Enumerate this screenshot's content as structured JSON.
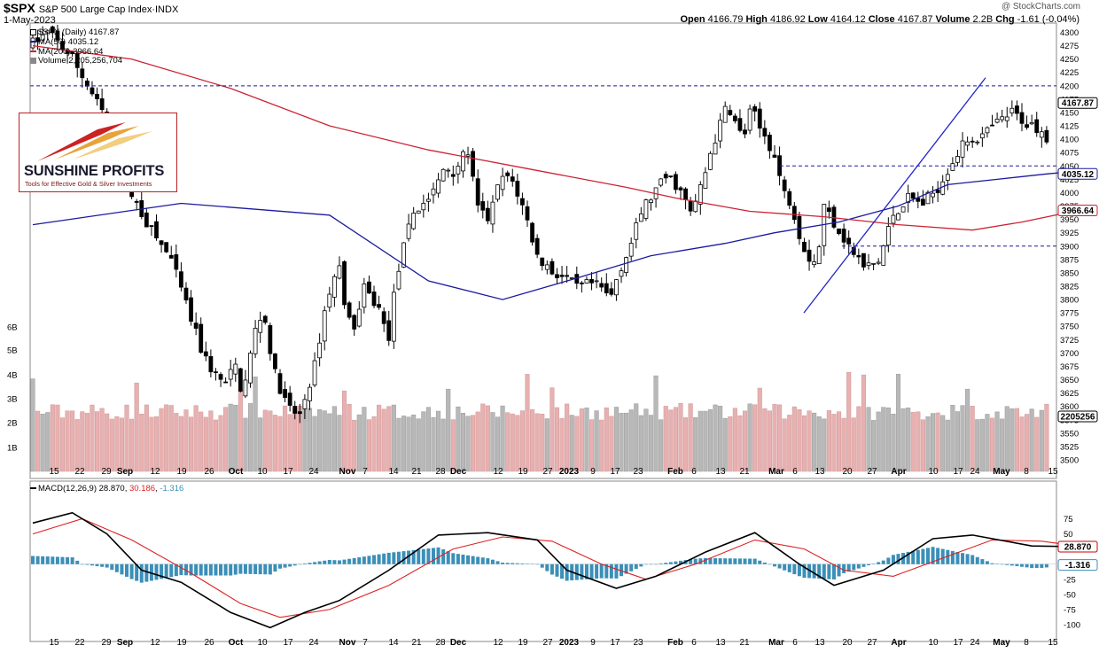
{
  "header": {
    "symbol": "$SPX",
    "name": "S&P 500 Large Cap Index",
    "exchange": "INDX",
    "date": "1-May-2023",
    "watermark": "@ StockCharts.com",
    "open_label": "Open",
    "open": "4166.79",
    "high_label": "High",
    "high": "4186.92",
    "low_label": "Low",
    "low": "4164.12",
    "close_label": "Close",
    "close": "4167.87",
    "volume_label": "Volume",
    "volume": "2.2B",
    "chg_label": "Chg",
    "chg": "-1.61 (-0.04%)"
  },
  "legend": {
    "price": "$SPX (Daily) 4167.87",
    "ma50": "MA(50) 4035.12",
    "ma200": "MA(200) 3966.64",
    "volume": "Volume 2,205,256,704",
    "macd_name": "MACD(12,26,9)",
    "macd_val": "28.870",
    "macd_signal": "30.186",
    "macd_hist": "-1.316"
  },
  "logo": {
    "name": "SUNSHINE PROFITS",
    "tagline": "Tools for Effective Gold & Silver Investments"
  },
  "price_tags": {
    "close": "4167.87",
    "ma50": "4035.12",
    "ma200": "3966.64",
    "volume": "2205256",
    "macd": "28.870",
    "hist": "-1.316"
  },
  "colors": {
    "up": "#ffffff",
    "down": "#000000",
    "ma50": "#1a1aa0",
    "ma200": "#cc2233",
    "vol_up": "#b8b8b8",
    "vol_down": "#e8b0b0",
    "hist": "#3b8fb8",
    "macd": "#000000",
    "signal": "#dd2222",
    "guides": "#1a1a99"
  },
  "chart_data": [
    {
      "type": "candlestick",
      "title": "$SPX (Daily)",
      "x_start": "2022-08-11",
      "x_end": "2023-05-01",
      "ylim": [
        3475,
        4330
      ],
      "y_ticks": [
        3500,
        3525,
        3550,
        3575,
        3600,
        3625,
        3650,
        3675,
        3700,
        3725,
        3750,
        3775,
        3800,
        3825,
        3850,
        3875,
        3900,
        3925,
        3950,
        3975,
        4000,
        4025,
        4050,
        4075,
        4100,
        4125,
        4150,
        4175,
        4200,
        4225,
        4250,
        4275,
        4300
      ],
      "x_tick_labels": [
        "15",
        "22",
        "29",
        "Sep",
        "12",
        "19",
        "26",
        "Oct",
        "10",
        "17",
        "24",
        "Nov",
        "7",
        "14",
        "21",
        "28",
        "Dec",
        "12",
        "19",
        "27",
        "2023",
        "9",
        "17",
        "23",
        "Feb",
        "6",
        "13",
        "21",
        "Mar",
        "6",
        "13",
        "20",
        "27",
        "Apr",
        "10",
        "17",
        "24",
        "May",
        "8",
        "15"
      ],
      "ma50": [
        [
          0,
          3940
        ],
        [
          30,
          3980
        ],
        [
          60,
          3958
        ],
        [
          80,
          3835
        ],
        [
          95,
          3800
        ],
        [
          110,
          3840
        ],
        [
          125,
          3882
        ],
        [
          140,
          3905
        ],
        [
          150,
          3925
        ],
        [
          163,
          3945
        ],
        [
          175,
          3975
        ],
        [
          185,
          4015
        ],
        [
          195,
          4025
        ],
        [
          205,
          4035
        ],
        [
          211,
          4040
        ]
      ],
      "ma200": [
        [
          0,
          4275
        ],
        [
          20,
          4250
        ],
        [
          40,
          4195
        ],
        [
          60,
          4125
        ],
        [
          80,
          4080
        ],
        [
          100,
          4045
        ],
        [
          120,
          4010
        ],
        [
          130,
          3990
        ],
        [
          145,
          3965
        ],
        [
          160,
          3955
        ],
        [
          175,
          3940
        ],
        [
          190,
          3930
        ],
        [
          200,
          3945
        ],
        [
          211,
          3966
        ]
      ],
      "horizontal_lines": [
        4200,
        4050,
        3900
      ],
      "trendline": [
        [
          160,
          3775
        ],
        [
          194,
          4215
        ]
      ],
      "last_close": 4167.87
    },
    {
      "type": "bar",
      "title": "Volume",
      "y_ticks_label": [
        "1B",
        "2B",
        "3B",
        "4B",
        "5B",
        "6B"
      ],
      "last": 2205256704
    },
    {
      "type": "line",
      "title": "MACD(12,26,9)",
      "ylim": [
        -110,
        95
      ],
      "y_ticks": [
        75,
        50,
        25,
        0,
        -25,
        -50,
        -75,
        -100
      ],
      "macd": [
        [
          0,
          68
        ],
        [
          8,
          85
        ],
        [
          15,
          50
        ],
        [
          22,
          -10
        ],
        [
          30,
          -30
        ],
        [
          40,
          -80
        ],
        [
          48,
          -105
        ],
        [
          55,
          -80
        ],
        [
          62,
          -60
        ],
        [
          72,
          -10
        ],
        [
          82,
          48
        ],
        [
          92,
          52
        ],
        [
          102,
          40
        ],
        [
          108,
          -10
        ],
        [
          118,
          -40
        ],
        [
          126,
          -20
        ],
        [
          136,
          20
        ],
        [
          146,
          52
        ],
        [
          155,
          0
        ],
        [
          162,
          -35
        ],
        [
          172,
          -10
        ],
        [
          182,
          42
        ],
        [
          190,
          48
        ],
        [
          202,
          30
        ],
        [
          211,
          28.87
        ]
      ],
      "signal": [
        [
          0,
          50
        ],
        [
          10,
          75
        ],
        [
          20,
          40
        ],
        [
          32,
          -15
        ],
        [
          42,
          -65
        ],
        [
          50,
          -88
        ],
        [
          60,
          -75
        ],
        [
          72,
          -35
        ],
        [
          85,
          25
        ],
        [
          95,
          45
        ],
        [
          105,
          38
        ],
        [
          115,
          0
        ],
        [
          124,
          -25
        ],
        [
          134,
          0
        ],
        [
          146,
          40
        ],
        [
          156,
          25
        ],
        [
          164,
          -10
        ],
        [
          174,
          -20
        ],
        [
          184,
          10
        ],
        [
          194,
          40
        ],
        [
          204,
          38
        ],
        [
          211,
          30.19
        ]
      ]
    }
  ]
}
